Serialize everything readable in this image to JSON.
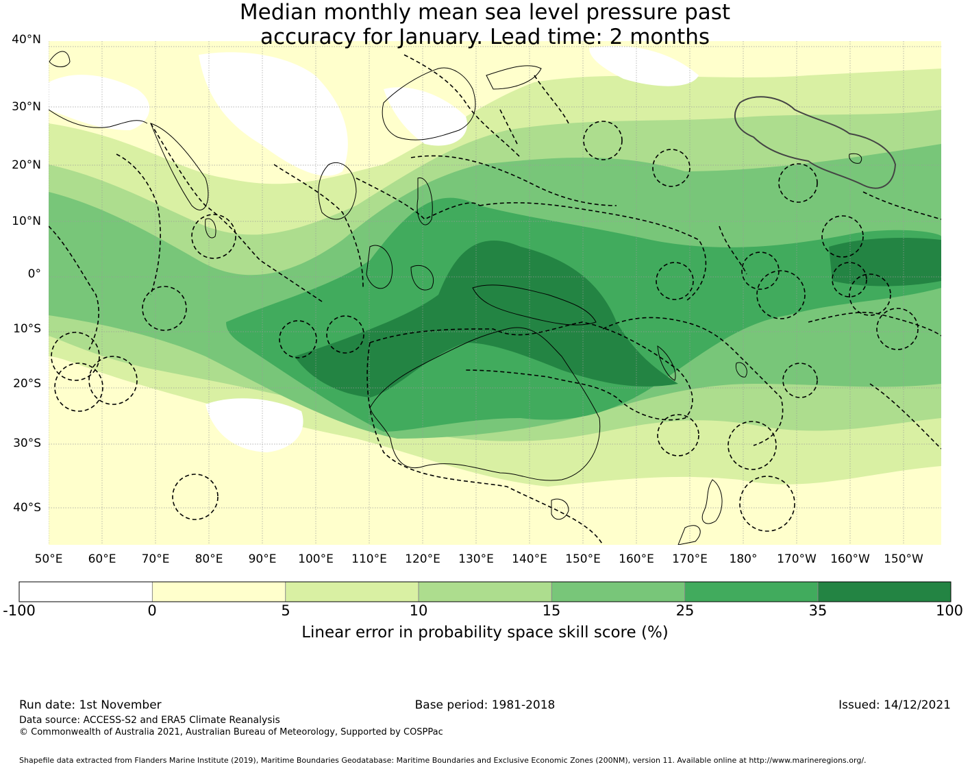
{
  "title_line1": "Median monthly mean sea level pressure past",
  "title_line2": "accuracy for January. Lead time: 2 months",
  "map": {
    "lat_labels": [
      "40°N",
      "30°N",
      "20°N",
      "10°N",
      "0°",
      "10°S",
      "20°S",
      "30°S",
      "40°S"
    ],
    "lon_labels": [
      "50°E",
      "60°E",
      "70°E",
      "80°E",
      "90°E",
      "100°E",
      "110°E",
      "120°E",
      "130°E",
      "140°E",
      "150°E",
      "160°E",
      "170°E",
      "180°",
      "170°W",
      "160°W",
      "150°W"
    ],
    "colors": {
      "neg": "#ffffff",
      "c0_5": "#ffffcc",
      "c5_10": "#d9f0a3",
      "c10_15": "#addd8e",
      "c15_25": "#78c679",
      "c25_35": "#41ab5d",
      "c35_100": "#238443"
    }
  },
  "colorbar": {
    "ticks": [
      "-100",
      "0",
      "5",
      "10",
      "15",
      "25",
      "35",
      "100"
    ],
    "label": "Linear error in probability space skill score (%)"
  },
  "footer": {
    "run_date": "Run date: 1st November",
    "base_period": "Base period: 1981-2018",
    "issued": "Issued: 14/12/2021",
    "data_source": "Data source: ACCESS-S2 and ERA5 Climate Reanalysis",
    "copyright": "© Commonwealth of Australia 2021, Australian Bureau of Meteorology, Supported by COSPPac",
    "shapefile": "Shapefile data extracted from Flanders Marine Institute (2019), Maritime Boundaries Geodatabase: Maritime Boundaries and Exclusive Economic Zones (200NM), version 11. Available online at http://www.marineregions.org/."
  }
}
